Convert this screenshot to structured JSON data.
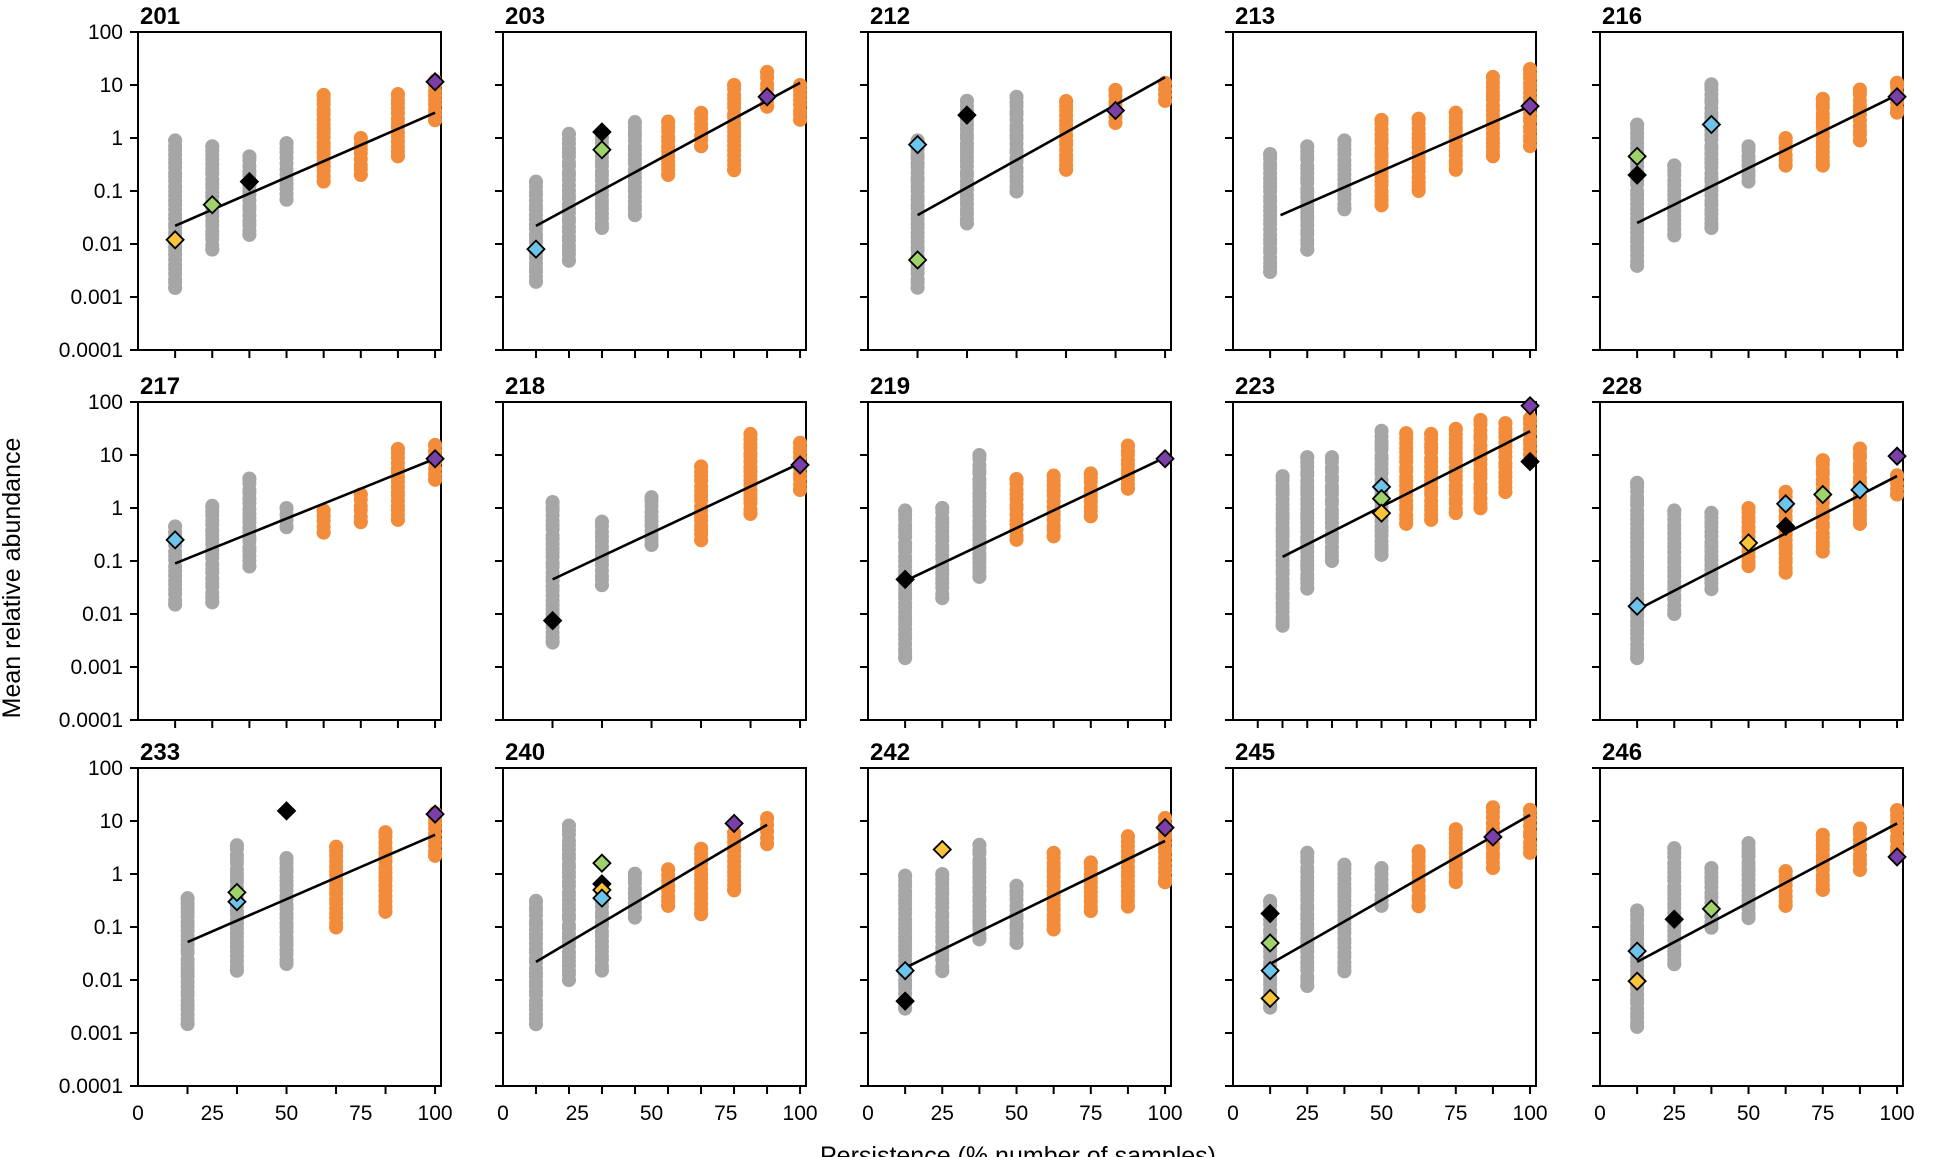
{
  "colors": {
    "transient": "#A6A6A6",
    "core": "#F28C3A",
    "fit_line": "#000000",
    "marker_purple": "#7B3FA8",
    "marker_black": "#000000",
    "marker_blue": "#6DC3EA",
    "marker_green": "#9ED36B",
    "marker_yellow": "#F9C33A"
  },
  "chart_data": {
    "type": "scatter",
    "xlabel": "Persistence (% number of samples)",
    "ylabel": "Mean relative abundance",
    "x_range": [
      0,
      102
    ],
    "y_scale": "log",
    "y_range": [
      0.0001,
      100
    ],
    "x_ticks": [
      "0",
      "25",
      "50",
      "75",
      "100"
    ],
    "y_ticks": [
      "0.0001",
      "0.001",
      "0.01",
      "0.1",
      "1",
      "10",
      "100"
    ],
    "legend": "none",
    "panels": [
      {
        "title": "201",
        "n": 8,
        "gray": [
          [
            12.5,
            0.0015,
            0.9
          ],
          [
            25,
            0.008,
            0.7
          ],
          [
            37.5,
            0.015,
            0.45
          ],
          [
            50,
            0.07,
            0.8
          ]
        ],
        "orange": [
          [
            62.5,
            0.15,
            0.55,
            6.5
          ],
          [
            75,
            0.2,
            1
          ],
          [
            87.5,
            0.45,
            6.5
          ],
          [
            100,
            2.2,
            12
          ]
        ],
        "line": [
          [
            12.5,
            0.022
          ],
          [
            100,
            3
          ]
        ],
        "markers": [
          [
            "yellow",
            12.5,
            0.012
          ],
          [
            "green",
            25,
            0.055
          ],
          [
            "black",
            37.5,
            0.15
          ],
          [
            "purple",
            100,
            11.5
          ]
        ]
      },
      {
        "title": "203",
        "n": 9,
        "gray": [
          [
            11.1,
            0.002,
            0.15
          ],
          [
            22.2,
            0.005,
            1.2
          ],
          [
            33.3,
            0.02,
            1
          ],
          [
            44.4,
            0.035,
            2
          ]
        ],
        "orange": [
          [
            55.6,
            0.2,
            2
          ],
          [
            66.7,
            0.7,
            3
          ],
          [
            77.8,
            0.25,
            10
          ],
          [
            88.9,
            4,
            17
          ],
          [
            100,
            2.2,
            10
          ]
        ],
        "line": [
          [
            11.1,
            0.022
          ],
          [
            100,
            11
          ]
        ],
        "markers": [
          [
            "blue",
            11.1,
            0.008
          ],
          [
            "black",
            33.3,
            1.3
          ],
          [
            "green",
            33.3,
            0.6
          ],
          [
            "purple",
            88.9,
            6
          ]
        ]
      },
      {
        "title": "212",
        "n": 6,
        "gray": [
          [
            16.7,
            0.0015,
            0.9
          ],
          [
            33.3,
            0.025,
            5
          ],
          [
            50,
            0.1,
            6
          ]
        ],
        "orange": [
          [
            66.7,
            0.25,
            5
          ],
          [
            83.3,
            2,
            8
          ],
          [
            100,
            5,
            11
          ]
        ],
        "line": [
          [
            16.7,
            0.035
          ],
          [
            100,
            14
          ]
        ],
        "markers": [
          [
            "blue",
            16.7,
            0.75
          ],
          [
            "green",
            16.7,
            0.005
          ],
          [
            "black",
            33.3,
            2.7
          ],
          [
            "purple",
            83.3,
            3.3
          ]
        ]
      },
      {
        "title": "213",
        "n": 8,
        "gray": [
          [
            12.5,
            0.003,
            0.5
          ],
          [
            25,
            0.008,
            0.7
          ],
          [
            37.5,
            0.045,
            0.9
          ]
        ],
        "orange": [
          [
            50,
            0.055,
            2.2
          ],
          [
            62.5,
            0.1,
            2.3
          ],
          [
            75,
            0.25,
            3
          ],
          [
            87.5,
            0.45,
            14
          ],
          [
            100,
            0.7,
            20
          ]
        ],
        "line": [
          [
            16,
            0.035
          ],
          [
            100,
            4
          ]
        ],
        "markers": [
          [
            "purple",
            100,
            4
          ]
        ]
      },
      {
        "title": "216",
        "n": 8,
        "gray": [
          [
            12.5,
            0.004,
            1.8
          ],
          [
            25,
            0.015,
            0.3
          ],
          [
            37.5,
            0.02,
            10
          ],
          [
            50,
            0.15,
            0.7
          ]
        ],
        "orange": [
          [
            62.5,
            0.3,
            1
          ],
          [
            75,
            0.3,
            5.5
          ],
          [
            87.5,
            0.9,
            8
          ],
          [
            100,
            3,
            11
          ]
        ],
        "line": [
          [
            12.5,
            0.025
          ],
          [
            100,
            6.5
          ]
        ],
        "markers": [
          [
            "green",
            12.5,
            0.45
          ],
          [
            "black",
            12.5,
            0.2
          ],
          [
            "blue",
            37.5,
            1.8
          ],
          [
            "purple",
            100,
            6
          ]
        ]
      },
      {
        "title": "217",
        "n": 8,
        "gray": [
          [
            12.5,
            0.015,
            0.45
          ],
          [
            25,
            0.017,
            1.1
          ],
          [
            37.5,
            0.08,
            3.5
          ],
          [
            50,
            0.45,
            1
          ]
        ],
        "orange": [
          [
            62.5,
            0.35,
            0.9
          ],
          [
            75,
            0.55,
            1.8
          ],
          [
            87.5,
            0.6,
            13
          ],
          [
            100,
            3.5,
            15
          ]
        ],
        "line": [
          [
            12.5,
            0.09
          ],
          [
            100,
            8.5
          ]
        ],
        "markers": [
          [
            "blue",
            12.5,
            0.25
          ],
          [
            "purple",
            100,
            8.5
          ]
        ]
      },
      {
        "title": "218",
        "n": 6,
        "gray": [
          [
            16.7,
            0.003,
            1.3
          ],
          [
            33.3,
            0.035,
            0.55
          ],
          [
            50,
            0.2,
            1.6
          ]
        ],
        "orange": [
          [
            66.7,
            0.25,
            6
          ],
          [
            83.3,
            0.8,
            25
          ],
          [
            100,
            2.2,
            17
          ]
        ],
        "line": [
          [
            16.7,
            0.045
          ],
          [
            100,
            7
          ]
        ],
        "markers": [
          [
            "black",
            16.7,
            0.0075
          ],
          [
            "purple",
            100,
            6.5
          ]
        ]
      },
      {
        "title": "219",
        "n": 8,
        "gray": [
          [
            12.5,
            0.0015,
            0.9
          ],
          [
            25,
            0.02,
            1
          ],
          [
            37.5,
            0.05,
            10
          ]
        ],
        "orange": [
          [
            50,
            0.25,
            3.5
          ],
          [
            62.5,
            0.3,
            4
          ],
          [
            75,
            0.7,
            4.5
          ],
          [
            87.5,
            2.3,
            15
          ]
        ],
        "line": [
          [
            12.5,
            0.042
          ],
          [
            100,
            9
          ]
        ],
        "markers": [
          [
            "black",
            12.5,
            0.045
          ],
          [
            "purple",
            100,
            8.5
          ]
        ]
      },
      {
        "title": "223",
        "n": 12,
        "gray": [
          [
            16.7,
            0.006,
            4
          ],
          [
            25,
            0.03,
            9
          ],
          [
            33.3,
            0.1,
            9
          ],
          [
            50,
            0.13,
            28
          ]
        ],
        "orange": [
          [
            58.3,
            0.5,
            25
          ],
          [
            66.7,
            0.6,
            25
          ],
          [
            75,
            0.8,
            30
          ],
          [
            83.3,
            1,
            45
          ],
          [
            91.7,
            2,
            40
          ],
          [
            100,
            10,
            50
          ]
        ],
        "line": [
          [
            16.7,
            0.12
          ],
          [
            100,
            28
          ]
        ],
        "markers": [
          [
            "blue",
            50,
            2.5
          ],
          [
            "green",
            50,
            1.5
          ],
          [
            "yellow",
            50,
            0.8
          ],
          [
            "black",
            100,
            7.5
          ],
          [
            "purple",
            100,
            85
          ]
        ]
      },
      {
        "title": "228",
        "n": 8,
        "gray": [
          [
            12.5,
            0.0015,
            3
          ],
          [
            25,
            0.01,
            0.9
          ],
          [
            37.5,
            0.03,
            0.8
          ]
        ],
        "orange": [
          [
            50,
            0.08,
            1
          ],
          [
            62.5,
            0.06,
            2
          ],
          [
            75,
            0.15,
            8
          ],
          [
            87.5,
            0.5,
            13
          ],
          [
            100,
            1.8,
            4
          ]
        ],
        "line": [
          [
            12.5,
            0.012
          ],
          [
            100,
            4
          ]
        ],
        "markers": [
          [
            "blue",
            12.5,
            0.014
          ],
          [
            "yellow",
            50,
            0.22
          ],
          [
            "black",
            62.5,
            0.45
          ],
          [
            "blue",
            62.5,
            1.2
          ],
          [
            "green",
            75,
            1.8
          ],
          [
            "blue",
            87.5,
            2.2
          ],
          [
            "purple",
            100,
            9.5
          ]
        ]
      },
      {
        "title": "233",
        "n": 6,
        "gray": [
          [
            16.7,
            0.0015,
            0.35
          ],
          [
            33.3,
            0.015,
            3.5
          ],
          [
            50,
            0.02,
            2
          ]
        ],
        "orange": [
          [
            66.7,
            0.1,
            3.2
          ],
          [
            83.3,
            0.2,
            6
          ],
          [
            100,
            2.2,
            14
          ]
        ],
        "line": [
          [
            16.7,
            0.052
          ],
          [
            100,
            5.5
          ]
        ],
        "markers": [
          [
            "blue",
            33.3,
            0.3
          ],
          [
            "green",
            33.3,
            0.45
          ],
          [
            "black",
            50,
            15.5
          ],
          [
            "purple",
            100,
            13.5
          ]
        ]
      },
      {
        "title": "240",
        "n": 9,
        "gray": [
          [
            11.1,
            0.0015,
            0.3
          ],
          [
            22.2,
            0.01,
            8
          ],
          [
            33.3,
            0.015,
            0.45
          ],
          [
            44.4,
            0.15,
            1
          ]
        ],
        "orange": [
          [
            55.6,
            0.25,
            1.2
          ],
          [
            66.7,
            0.18,
            3
          ],
          [
            77.8,
            0.5,
            6
          ],
          [
            88.9,
            3.8,
            11
          ]
        ],
        "line": [
          [
            11.1,
            0.022
          ],
          [
            88.9,
            8.5
          ]
        ],
        "markers": [
          [
            "green",
            33.3,
            1.6
          ],
          [
            "black",
            33.3,
            0.65
          ],
          [
            "yellow",
            33.3,
            0.5
          ],
          [
            "blue",
            33.3,
            0.35
          ],
          [
            "purple",
            77.8,
            9
          ]
        ]
      },
      {
        "title": "242",
        "n": 8,
        "gray": [
          [
            12.5,
            0.003,
            0.9
          ],
          [
            25,
            0.015,
            1
          ],
          [
            37.5,
            0.06,
            3.5
          ],
          [
            50,
            0.05,
            0.6
          ]
        ],
        "orange": [
          [
            62.5,
            0.09,
            2.5
          ],
          [
            75,
            0.2,
            1.6
          ],
          [
            87.5,
            0.25,
            5
          ],
          [
            100,
            0.7,
            11
          ]
        ],
        "line": [
          [
            12.5,
            0.017
          ],
          [
            100,
            4.2
          ]
        ],
        "markers": [
          [
            "blue",
            12.5,
            0.015
          ],
          [
            "black",
            12.5,
            0.004
          ],
          [
            "yellow",
            25,
            2.9
          ],
          [
            "purple",
            100,
            7.5
          ]
        ]
      },
      {
        "title": "245",
        "n": 8,
        "gray": [
          [
            12.5,
            0.003,
            0.3
          ],
          [
            25,
            0.008,
            2.5
          ],
          [
            37.5,
            0.015,
            1.5
          ],
          [
            50,
            0.25,
            1.3
          ]
        ],
        "orange": [
          [
            62.5,
            0.25,
            2.7
          ],
          [
            75,
            0.7,
            7
          ],
          [
            87.5,
            1.3,
            18
          ],
          [
            100,
            2.5,
            16
          ]
        ],
        "line": [
          [
            12.5,
            0.02
          ],
          [
            100,
            13
          ]
        ],
        "markers": [
          [
            "black",
            12.5,
            0.18
          ],
          [
            "green",
            12.5,
            0.05
          ],
          [
            "blue",
            12.5,
            0.015
          ],
          [
            "yellow",
            12.5,
            0.0045
          ],
          [
            "purple",
            87.5,
            5
          ]
        ]
      },
      {
        "title": "246",
        "n": 8,
        "gray": [
          [
            12.5,
            0.0013,
            0.2
          ],
          [
            25,
            0.02,
            3
          ],
          [
            37.5,
            0.1,
            1.3
          ],
          [
            50,
            0.15,
            3.8
          ]
        ],
        "orange": [
          [
            62.5,
            0.25,
            1.1
          ],
          [
            75,
            0.5,
            5.5
          ],
          [
            87.5,
            1.2,
            7
          ],
          [
            100,
            2.6,
            16
          ]
        ],
        "line": [
          [
            12.5,
            0.022
          ],
          [
            100,
            9
          ]
        ],
        "markers": [
          [
            "blue",
            12.5,
            0.035
          ],
          [
            "yellow",
            12.5,
            0.0095
          ],
          [
            "black",
            25,
            0.14
          ],
          [
            "green",
            37.5,
            0.22
          ],
          [
            "purple",
            100,
            2.1
          ]
        ]
      }
    ]
  }
}
